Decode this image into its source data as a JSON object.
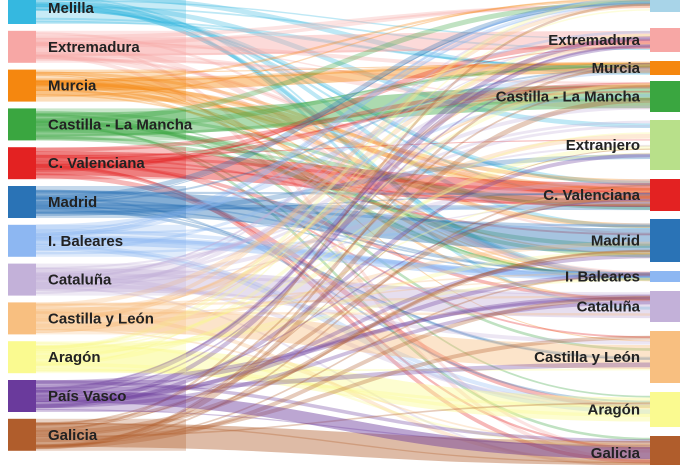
{
  "chart_data": {
    "type": "sankey",
    "title": "",
    "left_nodes": [
      {
        "label": "Melilla",
        "color": "#35b8e0"
      },
      {
        "label": "Extremadura",
        "color": "#f7a7a5"
      },
      {
        "label": "Murcia",
        "color": "#f5870f"
      },
      {
        "label": "Castilla - La Mancha",
        "color": "#3aa640"
      },
      {
        "label": "C. Valenciana",
        "color": "#e32222"
      },
      {
        "label": "Madrid",
        "color": "#2a73b6"
      },
      {
        "label": "I. Baleares",
        "color": "#8db7f2"
      },
      {
        "label": "Cataluña",
        "color": "#c3b1d9"
      },
      {
        "label": "Castilla y León",
        "color": "#f8bf80"
      },
      {
        "label": "Aragón",
        "color": "#fafa90"
      },
      {
        "label": "País Vasco",
        "color": "#6a3a9c"
      },
      {
        "label": "Galicia",
        "color": "#b05d2c"
      }
    ],
    "right_nodes": [
      {
        "label": "",
        "color": "#a8d4e8"
      },
      {
        "label": "Extremadura",
        "color": "#f7a7a5"
      },
      {
        "label": "Murcia",
        "color": "#f5870f"
      },
      {
        "label": "Castilla - La Mancha",
        "color": "#3aa640"
      },
      {
        "label": "Extranjero",
        "color": "#b8e08a"
      },
      {
        "label": "C. Valenciana",
        "color": "#e32222"
      },
      {
        "label": "Madrid",
        "color": "#2a73b6"
      },
      {
        "label": "I. Baleares",
        "color": "#8db7f2"
      },
      {
        "label": "Cataluña",
        "color": "#c3b1d9"
      },
      {
        "label": "Castilla y León",
        "color": "#f8bf80"
      },
      {
        "label": "Aragón",
        "color": "#fafa90"
      },
      {
        "label": "Galicia",
        "color": "#b05d2c"
      }
    ]
  }
}
